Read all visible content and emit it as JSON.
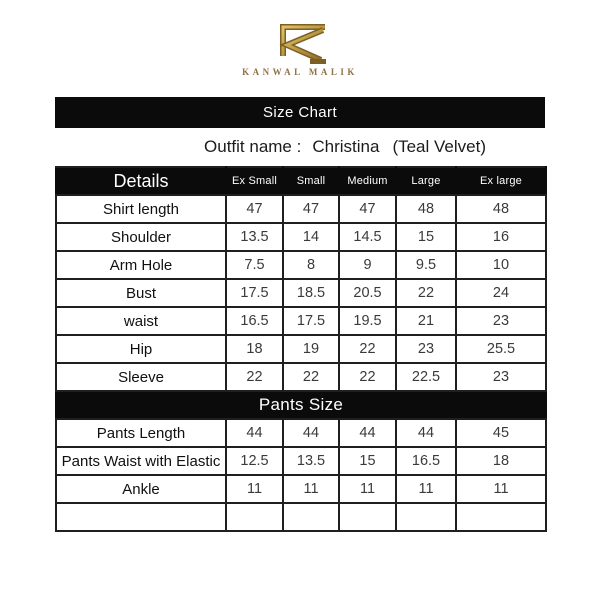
{
  "colors": {
    "gold_mid": "#b6953f",
    "gold_light": "#e0c26a",
    "gold_dark": "#7d5f23",
    "bar_black": "#0b0b0b"
  },
  "logo": {
    "brand": "KANWAL MALIK",
    "monogram_icon": "stylized-gold-K"
  },
  "banner": {
    "title": "Size Chart"
  },
  "outfit": {
    "label": "Outfit name :",
    "name": "Christina",
    "variant": "(Teal Velvet)"
  },
  "table": {
    "details_label": "Details",
    "size_headers": [
      "Ex Small",
      "Small",
      "Medium",
      "Large",
      "Ex large"
    ],
    "shirt_rows": [
      {
        "label": "Shirt length",
        "values": [
          "47",
          "47",
          "47",
          "48",
          "48"
        ]
      },
      {
        "label": "Shoulder",
        "values": [
          "13.5",
          "14",
          "14.5",
          "15",
          "16"
        ]
      },
      {
        "label": "Arm Hole",
        "values": [
          "7.5",
          "8",
          "9",
          "9.5",
          "10"
        ]
      },
      {
        "label": "Bust",
        "values": [
          "17.5",
          "18.5",
          "20.5",
          "22",
          "24"
        ]
      },
      {
        "label": "waist",
        "values": [
          "16.5",
          "17.5",
          "19.5",
          "21",
          "23"
        ]
      },
      {
        "label": "Hip",
        "values": [
          "18",
          "19",
          "22",
          "23",
          "25.5"
        ]
      },
      {
        "label": "Sleeve",
        "values": [
          "22",
          "22",
          "22",
          "22.5",
          "23"
        ]
      }
    ],
    "pants_section_label": "Pants Size",
    "pants_rows": [
      {
        "label": "Pants Length",
        "values": [
          "44",
          "44",
          "44",
          "44",
          "45"
        ]
      },
      {
        "label": "Pants Waist with Elastic",
        "values": [
          "12.5",
          "13.5",
          "15",
          "16.5",
          "18"
        ]
      },
      {
        "label": "Ankle",
        "values": [
          "11",
          "11",
          "11",
          "11",
          "11"
        ]
      },
      {
        "label": "",
        "values": [
          "",
          "",
          "",
          "",
          ""
        ]
      }
    ]
  }
}
